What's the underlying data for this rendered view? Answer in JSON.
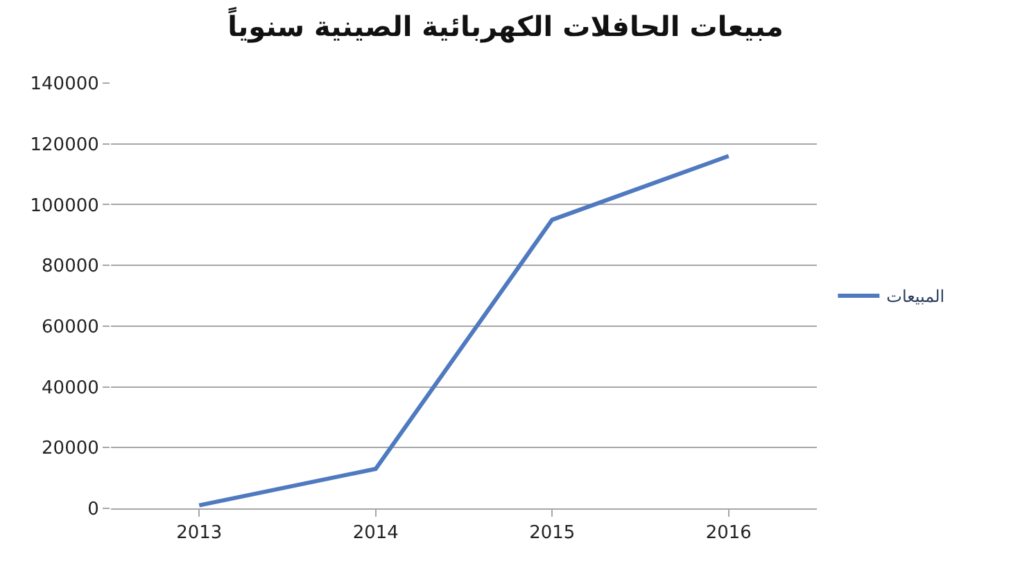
{
  "chart_data": {
    "type": "line",
    "title": "مبيعات الحافلات الكهربائية الصينية سنوياً",
    "categories": [
      "2013",
      "2014",
      "2015",
      "2016"
    ],
    "series": [
      {
        "name": "المبيعات",
        "color": "#4f7ac0",
        "values": [
          1000,
          13000,
          95000,
          116000
        ]
      }
    ],
    "ylim": [
      0,
      140000
    ],
    "yticks": [
      0,
      20000,
      40000,
      60000,
      80000,
      100000,
      120000,
      140000
    ],
    "grid": "y",
    "legend": "right",
    "marker": "none",
    "line_style": "solid"
  }
}
